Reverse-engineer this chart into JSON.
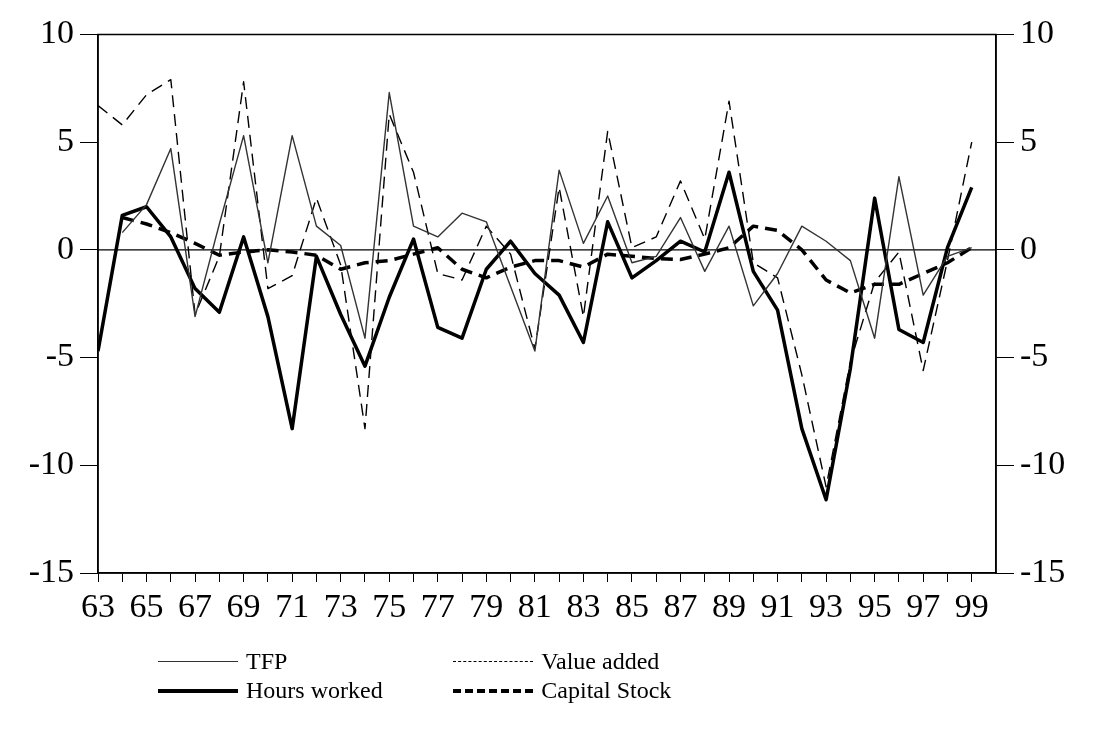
{
  "chart_data": {
    "type": "line",
    "x": [
      63,
      64,
      65,
      66,
      67,
      68,
      69,
      70,
      71,
      72,
      73,
      74,
      75,
      76,
      77,
      78,
      79,
      80,
      81,
      82,
      83,
      84,
      85,
      86,
      87,
      88,
      89,
      90,
      91,
      92,
      93,
      94,
      95,
      96,
      97,
      98,
      99
    ],
    "series": [
      {
        "name": "TFP",
        "color": "#333333",
        "line_style": "solid",
        "values": [
          null,
          0.8,
          2.1,
          4.7,
          -3.1,
          1.2,
          5.3,
          -0.6,
          5.3,
          1.1,
          0.2,
          -4.1,
          7.3,
          1.1,
          0.6,
          1.7,
          1.3,
          -1.7,
          -4.7,
          3.7,
          0.3,
          2.5,
          -0.6,
          -0.3,
          1.5,
          -1.0,
          1.1,
          -2.6,
          -1.1,
          1.1,
          0.4,
          -0.5,
          -4.1,
          3.4,
          -2.1,
          -0.3,
          0.1
        ]
      },
      {
        "name": "Hours worked",
        "color": "#000000",
        "line_style": "solid",
        "values": [
          -4.7,
          1.6,
          2.0,
          0.6,
          -1.8,
          -2.9,
          0.6,
          -3.1,
          -8.3,
          -0.3,
          -3.0,
          -5.4,
          -2.2,
          0.5,
          -3.6,
          -4.1,
          -0.9,
          0.4,
          -1.1,
          -2.1,
          -4.3,
          1.3,
          -1.3,
          -0.5,
          0.4,
          -0.1,
          3.6,
          -1.0,
          -2.8,
          -8.3,
          -11.6,
          -5.5,
          2.4,
          -3.7,
          -4.3,
          0.1,
          2.9
        ]
      },
      {
        "name": "Value added",
        "color": "#000000",
        "line_style": "dashed",
        "values": [
          6.7,
          5.8,
          7.2,
          7.9,
          -3.0,
          -0.3,
          7.8,
          -1.8,
          -1.2,
          2.4,
          -0.7,
          -8.3,
          6.3,
          3.6,
          -1.1,
          -1.4,
          1.1,
          -0.2,
          -4.6,
          2.9,
          -3.1,
          5.5,
          0.1,
          0.6,
          3.2,
          0.5,
          6.9,
          -0.6,
          -1.3,
          -5.8,
          -11.0,
          -5.2,
          -1.5,
          -0.1,
          -5.6,
          -0.5,
          5.0
        ]
      },
      {
        "name": "Capital Stock",
        "color": "#000000",
        "line_style": "dashed",
        "values": [
          null,
          1.5,
          1.2,
          0.8,
          0.3,
          -0.25,
          -0.1,
          0,
          -0.1,
          -0.25,
          -0.9,
          -0.6,
          -0.5,
          -0.2,
          0.1,
          -0.9,
          -1.3,
          -0.8,
          -0.5,
          -0.5,
          -0.8,
          -0.2,
          -0.3,
          -0.4,
          -0.45,
          -0.2,
          0.1,
          1.1,
          0.9,
          0,
          -1.4,
          -2.0,
          -1.6,
          -1.6,
          -1.1,
          -0.6,
          0.1
        ]
      }
    ],
    "xlim": [
      63,
      100
    ],
    "xticks": [
      63,
      {
        "value": 64,
        "label": null
      },
      65,
      {
        "value": 66,
        "label": null
      },
      67,
      {
        "value": 68,
        "label": null
      },
      69,
      {
        "value": 70,
        "label": null
      },
      71,
      {
        "value": 72,
        "label": null
      },
      73,
      {
        "value": 74,
        "label": null
      },
      75,
      {
        "value": 76,
        "label": null
      },
      77,
      {
        "value": 78,
        "label": null
      },
      79,
      {
        "value": 80,
        "label": null
      },
      81,
      {
        "value": 82,
        "label": null
      },
      83,
      {
        "value": 84,
        "label": null
      },
      85,
      {
        "value": 86,
        "label": null
      },
      87,
      {
        "value": 88,
        "label": null
      },
      89,
      {
        "value": 90,
        "label": null
      },
      91,
      {
        "value": 92,
        "label": null
      },
      93,
      {
        "value": 94,
        "label": null
      },
      95,
      {
        "value": 96,
        "label": null
      },
      97,
      {
        "value": 98,
        "label": null
      },
      99
    ],
    "ylim": [
      -15,
      10
    ],
    "yticks": [
      -15,
      -10,
      -5,
      0,
      5,
      10
    ],
    "y2lim": [
      -15,
      10
    ],
    "y2ticks": [
      -15,
      -10,
      -5,
      0,
      5,
      10
    ],
    "ref_lines": [
      {
        "axis": "y",
        "value": 0,
        "color": "#000000"
      }
    ],
    "grid": false,
    "legend": "bottom",
    "marker": "none"
  }
}
